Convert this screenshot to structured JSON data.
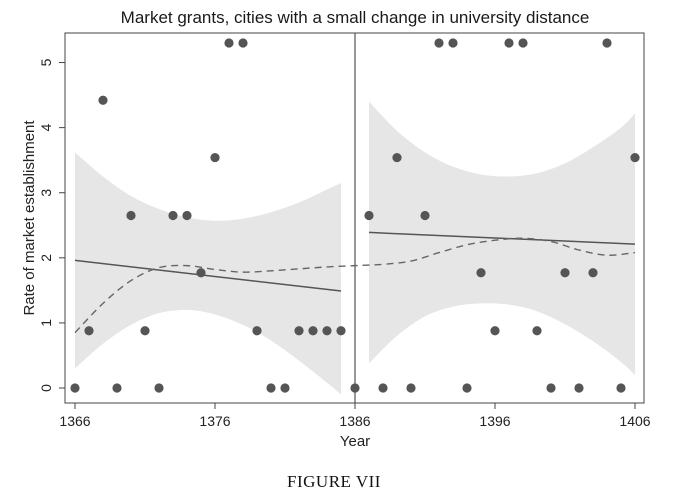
{
  "chart_data": {
    "type": "scatter",
    "title": "Market grants, cities with a small change in university distance",
    "xlabel": "Year",
    "ylabel": "Rate of market establishment",
    "caption": "FIGURE VII",
    "xlim": [
      1366,
      1406
    ],
    "ylim": [
      0,
      5.3
    ],
    "xticks": [
      1366,
      1376,
      1386,
      1396,
      1406
    ],
    "yticks": [
      0,
      1,
      2,
      3,
      4,
      5
    ],
    "cutoff": 1386,
    "points": [
      {
        "x": 1366,
        "y": 0
      },
      {
        "x": 1367,
        "y": 0.88
      },
      {
        "x": 1368,
        "y": 4.42
      },
      {
        "x": 1369,
        "y": 0
      },
      {
        "x": 1370,
        "y": 2.65
      },
      {
        "x": 1371,
        "y": 0.88
      },
      {
        "x": 1372,
        "y": 0
      },
      {
        "x": 1373,
        "y": 2.65
      },
      {
        "x": 1374,
        "y": 2.65
      },
      {
        "x": 1375,
        "y": 1.77
      },
      {
        "x": 1376,
        "y": 3.54
      },
      {
        "x": 1377,
        "y": 5.3
      },
      {
        "x": 1378,
        "y": 5.3
      },
      {
        "x": 1379,
        "y": 0.88
      },
      {
        "x": 1380,
        "y": 0
      },
      {
        "x": 1381,
        "y": 0
      },
      {
        "x": 1382,
        "y": 0.88
      },
      {
        "x": 1383,
        "y": 0.88
      },
      {
        "x": 1384,
        "y": 0.88
      },
      {
        "x": 1385,
        "y": 0.88
      },
      {
        "x": 1386,
        "y": 0
      },
      {
        "x": 1387,
        "y": 2.65
      },
      {
        "x": 1388,
        "y": 0
      },
      {
        "x": 1389,
        "y": 3.54
      },
      {
        "x": 1390,
        "y": 0
      },
      {
        "x": 1391,
        "y": 2.65
      },
      {
        "x": 1392,
        "y": 5.3
      },
      {
        "x": 1393,
        "y": 5.3
      },
      {
        "x": 1394,
        "y": 0
      },
      {
        "x": 1395,
        "y": 1.77
      },
      {
        "x": 1396,
        "y": 0.88
      },
      {
        "x": 1397,
        "y": 5.3
      },
      {
        "x": 1398,
        "y": 5.3
      },
      {
        "x": 1399,
        "y": 0.88
      },
      {
        "x": 1400,
        "y": 0
      },
      {
        "x": 1401,
        "y": 1.77
      },
      {
        "x": 1402,
        "y": 0
      },
      {
        "x": 1403,
        "y": 1.77
      },
      {
        "x": 1404,
        "y": 5.3
      },
      {
        "x": 1405,
        "y": 0
      },
      {
        "x": 1406,
        "y": 3.54
      }
    ],
    "fit_left": {
      "x": [
        1366,
        1385
      ],
      "y": [
        1.96,
        1.49
      ]
    },
    "fit_right": {
      "x": [
        1387,
        1406
      ],
      "y": [
        2.39,
        2.21
      ]
    },
    "ci_left": {
      "x": [
        1366,
        1368,
        1370,
        1372,
        1374,
        1376,
        1378,
        1380,
        1382,
        1384,
        1385
      ],
      "upper": [
        3.62,
        3.25,
        2.95,
        2.75,
        2.62,
        2.57,
        2.6,
        2.7,
        2.85,
        3.05,
        3.15
      ],
      "lower": [
        0.3,
        0.68,
        0.97,
        1.15,
        1.2,
        1.13,
        0.97,
        0.73,
        0.42,
        0.08,
        -0.1
      ]
    },
    "ci_right": {
      "x": [
        1387,
        1389,
        1391,
        1393,
        1395,
        1397,
        1399,
        1401,
        1403,
        1405,
        1406
      ],
      "upper": [
        4.4,
        3.95,
        3.62,
        3.4,
        3.28,
        3.25,
        3.3,
        3.45,
        3.7,
        4.0,
        4.22
      ],
      "lower": [
        0.38,
        0.8,
        1.1,
        1.25,
        1.3,
        1.28,
        1.18,
        0.98,
        0.72,
        0.4,
        0.2
      ]
    },
    "smooth": {
      "x": [
        1366,
        1368,
        1370,
        1372,
        1374,
        1376,
        1378,
        1380,
        1382,
        1384,
        1386,
        1388,
        1390,
        1392,
        1394,
        1396,
        1398,
        1400,
        1402,
        1404,
        1406
      ],
      "y": [
        0.85,
        1.3,
        1.65,
        1.85,
        1.88,
        1.82,
        1.78,
        1.8,
        1.83,
        1.86,
        1.88,
        1.9,
        1.95,
        2.08,
        2.2,
        2.27,
        2.3,
        2.25,
        2.12,
        2.04,
        2.08
      ]
    }
  }
}
